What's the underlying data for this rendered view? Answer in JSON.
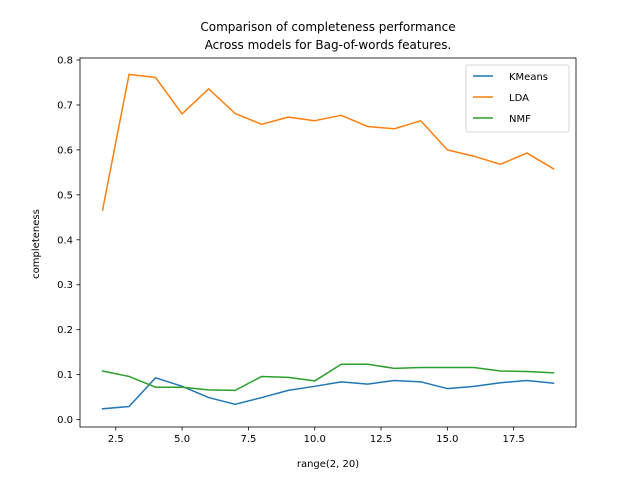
{
  "chart_data": {
    "type": "line",
    "title": [
      "Comparison of completeness performance",
      "Across models for Bag-of-words features."
    ],
    "xlabel": "range(2, 20)",
    "ylabel": "completeness",
    "xlim": [
      1.15,
      19.85
    ],
    "ylim": [
      -0.0165,
      0.8045
    ],
    "xticks": [
      2.5,
      5.0,
      7.5,
      10.0,
      12.5,
      15.0,
      17.5
    ],
    "xtick_labels": [
      "2.5",
      "5.0",
      "7.5",
      "10.0",
      "12.5",
      "15.0",
      "17.5"
    ],
    "yticks": [
      0.0,
      0.1,
      0.2,
      0.3,
      0.4,
      0.5,
      0.6,
      0.7,
      0.8
    ],
    "ytick_labels": [
      "0.0",
      "0.1",
      "0.2",
      "0.3",
      "0.4",
      "0.5",
      "0.6",
      "0.7",
      "0.8"
    ],
    "legend_position": "top-right",
    "grid": false,
    "x": [
      2,
      3,
      4,
      5,
      6,
      7,
      8,
      9,
      10,
      11,
      12,
      13,
      14,
      15,
      16,
      17,
      18,
      19
    ],
    "series": [
      {
        "name": "KMeans",
        "color": "#1f77b4",
        "values": [
          0.024,
          0.029,
          0.093,
          0.074,
          0.049,
          0.034,
          0.049,
          0.065,
          0.074,
          0.084,
          0.079,
          0.087,
          0.084,
          0.069,
          0.074,
          0.082,
          0.087,
          0.081
        ]
      },
      {
        "name": "LDA",
        "color": "#ff7f0e",
        "values": [
          0.466,
          0.768,
          0.761,
          0.68,
          0.736,
          0.681,
          0.657,
          0.673,
          0.665,
          0.677,
          0.652,
          0.647,
          0.665,
          0.6,
          0.586,
          0.568,
          0.593,
          0.558
        ]
      },
      {
        "name": "NMF",
        "color": "#2ca02c",
        "values": [
          0.108,
          0.096,
          0.072,
          0.072,
          0.066,
          0.065,
          0.096,
          0.094,
          0.086,
          0.123,
          0.123,
          0.114,
          0.116,
          0.116,
          0.116,
          0.108,
          0.107,
          0.104
        ]
      }
    ]
  }
}
